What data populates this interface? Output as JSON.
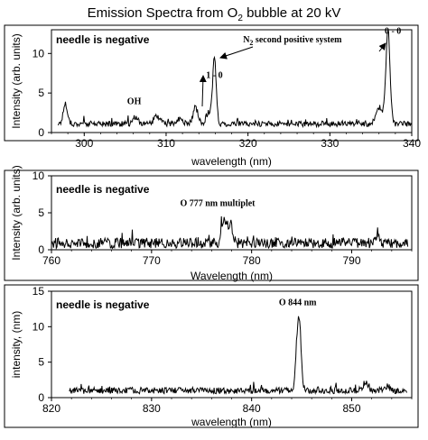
{
  "figure": {
    "title_prefix": "Emission Spectra from O",
    "title_sub": "2",
    "title_suffix": " bubble at 20 kV"
  },
  "chart_data": [
    {
      "type": "line",
      "tag": "needle is negative",
      "xlabel": "wavelength (nm)",
      "ylabel": "Intensity (arb. units)",
      "xlim": [
        296,
        340
      ],
      "ylim": [
        0,
        13
      ],
      "xticks": [
        300,
        310,
        320,
        330,
        340
      ],
      "yticks": [
        0,
        5,
        10
      ],
      "grid": false,
      "noise": {
        "base": 1.1,
        "amp": 0.35
      },
      "start_x": 296.8,
      "end_x": 340,
      "peaks": [
        {
          "x": 297.7,
          "h": 2.6,
          "w": 0.25
        },
        {
          "x": 306.3,
          "h": 0.8,
          "w": 0.3
        },
        {
          "x": 308.9,
          "h": 1.0,
          "w": 0.35
        },
        {
          "x": 311.7,
          "h": 0.6,
          "w": 0.35
        },
        {
          "x": 313.6,
          "h": 2.0,
          "w": 0.3
        },
        {
          "x": 315.9,
          "h": 8.2,
          "w": 0.22
        },
        {
          "x": 315.2,
          "h": 1.5,
          "w": 0.3
        },
        {
          "x": 336.1,
          "h": 2.0,
          "w": 0.4
        },
        {
          "x": 337.1,
          "h": 11.8,
          "w": 0.25
        }
      ],
      "annotations": [
        {
          "text_main": "1 - 0",
          "x": 315.9,
          "y": 6.9
        },
        {
          "text_main": "OH",
          "x": 306.1,
          "y": 3.6
        },
        {
          "text_main": "0 - 0",
          "x": 337.7,
          "y": 12.5
        },
        {
          "text_main": "N",
          "text_sub": "2",
          "text_after": " second positive system",
          "x": 319.4,
          "y": 11.4
        }
      ]
    },
    {
      "type": "line",
      "tag": "needle is negative",
      "xlabel": "Wavelength (nm)",
      "ylabel": "Intensity (arb. units)",
      "xlim": [
        760,
        796
      ],
      "ylim": [
        0,
        10
      ],
      "xticks": [
        760,
        770,
        780,
        790
      ],
      "yticks": [
        0,
        5,
        10
      ],
      "grid": false,
      "noise": {
        "base": 0.9,
        "amp": 0.7
      },
      "start_x": 760,
      "end_x": 795.6,
      "peaks": [
        {
          "x": 777.3,
          "h": 3.3,
          "w": 0.25
        },
        {
          "x": 777.9,
          "h": 2.4,
          "w": 0.2
        },
        {
          "x": 792.6,
          "h": 1.6,
          "w": 0.15
        }
      ],
      "annotations": [
        {
          "text_main": "O 777 nm multiplet",
          "x": 776.6,
          "y": 5.9
        }
      ]
    },
    {
      "type": "line",
      "tag": "needle is negative",
      "xlabel": "wavelength (nm)",
      "ylabel": "intensity, (nm)",
      "xlim": [
        820,
        856
      ],
      "ylim": [
        0,
        15
      ],
      "xticks": [
        820,
        830,
        840,
        850
      ],
      "yticks": [
        0,
        5,
        10,
        15
      ],
      "grid": false,
      "noise": {
        "base": 1.0,
        "amp": 0.45
      },
      "start_x": 821.8,
      "end_x": 855.5,
      "peaks": [
        {
          "x": 844.7,
          "h": 10.6,
          "w": 0.22
        },
        {
          "x": 851.4,
          "h": 1.2,
          "w": 0.25
        },
        {
          "x": 853.5,
          "h": 0.6,
          "w": 0.3
        }
      ],
      "annotations": [
        {
          "text_main": "O 844 nm",
          "x": 844.6,
          "y": 13.0
        }
      ]
    }
  ]
}
